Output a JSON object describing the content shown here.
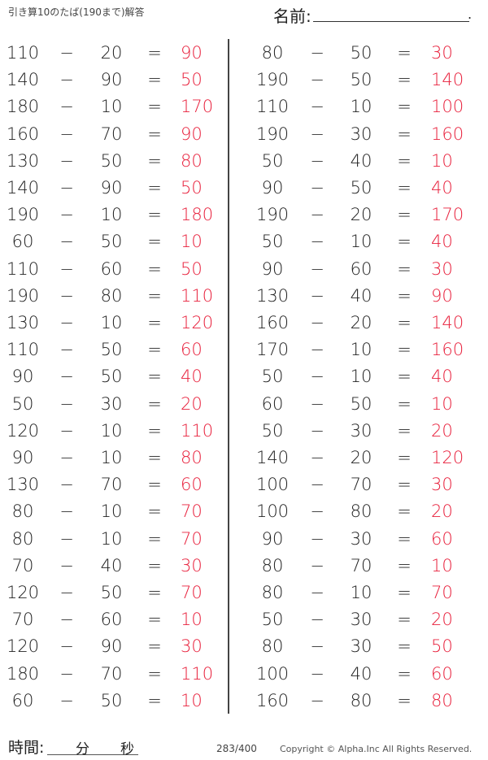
{
  "header": {
    "title": "引き算10のたば(190まで)解答",
    "name_label": "名前:",
    "name_end": "."
  },
  "footer": {
    "time_label": "時間:",
    "minutes": "分",
    "seconds": "秒",
    "page": "283/400",
    "copyright": "Copyright ©  Alpha.Inc All Rights Reserved."
  },
  "symbols": {
    "minus": "−",
    "equals": "="
  },
  "colors": {
    "answer": "#e8203c"
  },
  "left": [
    [
      "110",
      "20",
      "90"
    ],
    [
      "140",
      "90",
      "50"
    ],
    [
      "180",
      "10",
      "170"
    ],
    [
      "160",
      "70",
      "90"
    ],
    [
      "130",
      "50",
      "80"
    ],
    [
      "140",
      "90",
      "50"
    ],
    [
      "190",
      "10",
      "180"
    ],
    [
      "60",
      "50",
      "10"
    ],
    [
      "110",
      "60",
      "50"
    ],
    [
      "190",
      "80",
      "110"
    ],
    [
      "130",
      "10",
      "120"
    ],
    [
      "110",
      "50",
      "60"
    ],
    [
      "90",
      "50",
      "40"
    ],
    [
      "50",
      "30",
      "20"
    ],
    [
      "120",
      "10",
      "110"
    ],
    [
      "90",
      "10",
      "80"
    ],
    [
      "130",
      "70",
      "60"
    ],
    [
      "80",
      "10",
      "70"
    ],
    [
      "80",
      "10",
      "70"
    ],
    [
      "70",
      "40",
      "30"
    ],
    [
      "120",
      "50",
      "70"
    ],
    [
      "70",
      "60",
      "10"
    ],
    [
      "120",
      "90",
      "30"
    ],
    [
      "180",
      "70",
      "110"
    ],
    [
      "60",
      "50",
      "10"
    ]
  ],
  "right": [
    [
      "80",
      "50",
      "30"
    ],
    [
      "190",
      "50",
      "140"
    ],
    [
      "110",
      "10",
      "100"
    ],
    [
      "190",
      "30",
      "160"
    ],
    [
      "50",
      "40",
      "10"
    ],
    [
      "90",
      "50",
      "40"
    ],
    [
      "190",
      "20",
      "170"
    ],
    [
      "50",
      "10",
      "40"
    ],
    [
      "90",
      "60",
      "30"
    ],
    [
      "130",
      "40",
      "90"
    ],
    [
      "160",
      "20",
      "140"
    ],
    [
      "170",
      "10",
      "160"
    ],
    [
      "50",
      "10",
      "40"
    ],
    [
      "60",
      "50",
      "10"
    ],
    [
      "50",
      "30",
      "20"
    ],
    [
      "140",
      "20",
      "120"
    ],
    [
      "100",
      "70",
      "30"
    ],
    [
      "100",
      "80",
      "20"
    ],
    [
      "90",
      "30",
      "60"
    ],
    [
      "80",
      "70",
      "10"
    ],
    [
      "80",
      "10",
      "70"
    ],
    [
      "50",
      "30",
      "20"
    ],
    [
      "80",
      "30",
      "50"
    ],
    [
      "100",
      "40",
      "60"
    ],
    [
      "160",
      "80",
      "80"
    ]
  ]
}
